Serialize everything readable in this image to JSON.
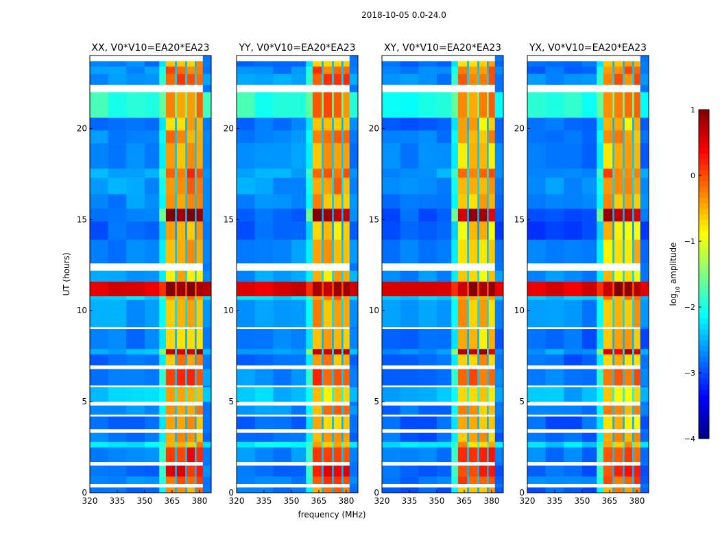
{
  "chart_data": {
    "type": "heatmap",
    "title": "2018-10-05 0.0-24.0",
    "xlabel": "frequency (MHz)",
    "ylabel": "UT (hours)",
    "xlim": [
      320,
      386.4
    ],
    "ylim": [
      0,
      24
    ],
    "xticks": [
      "320",
      "335",
      "350",
      "365",
      "380"
    ],
    "xtick_values": [
      320,
      335,
      350,
      365,
      380
    ],
    "yticks": [
      "0",
      "5",
      "10",
      "15",
      "20"
    ],
    "ytick_values": [
      0,
      5,
      10,
      15,
      20
    ],
    "colorbar": {
      "label_main": "log",
      "label_sub": "10",
      "label_rest": " amplitude",
      "colormap": "jet",
      "range": [
        -4,
        1
      ],
      "ticks": [
        "1",
        "0",
        "−1",
        "−2",
        "−3",
        "−4"
      ],
      "tick_values": [
        1,
        0,
        -1,
        -2,
        -3,
        -4
      ]
    },
    "panels": [
      {
        "title": "XX, V0*V10=EA20*EA23",
        "band_offset": 0.0,
        "bg_offset": 0.0
      },
      {
        "title": "YY, V0*V10=EA20*EA23",
        "band_offset": 0.0,
        "bg_offset": 0.0
      },
      {
        "title": "XY, V0*V10=EA20*EA23",
        "band_offset": -0.1,
        "bg_offset": -0.1
      },
      {
        "title": "YX, V0*V10=EA20*EA23",
        "band_offset": -0.1,
        "bg_offset": -0.1
      }
    ],
    "freq_columns": [
      {
        "f0": 320,
        "f1": 330,
        "kind": "bg"
      },
      {
        "f0": 330,
        "f1": 340,
        "kind": "bg"
      },
      {
        "f0": 340,
        "f1": 350,
        "kind": "bg"
      },
      {
        "f0": 350,
        "f1": 358,
        "kind": "bg"
      },
      {
        "f0": 358,
        "f1": 361.6,
        "kind": "edge"
      },
      {
        "f0": 361.6,
        "f1": 366.6,
        "kind": "band"
      },
      {
        "f0": 366.6,
        "f1": 367.6,
        "kind": "gap"
      },
      {
        "f0": 367.6,
        "f1": 372.2,
        "kind": "band"
      },
      {
        "f0": 372.2,
        "f1": 373.2,
        "kind": "gap"
      },
      {
        "f0": 373.2,
        "f1": 377.4,
        "kind": "band"
      },
      {
        "f0": 377.4,
        "f1": 378.4,
        "kind": "gap"
      },
      {
        "f0": 378.4,
        "f1": 381.8,
        "kind": "band"
      },
      {
        "f0": 381.8,
        "f1": 386.4,
        "kind": "bg"
      }
    ],
    "time_rows": [
      {
        "t0": 0.0,
        "t1": 0.3,
        "bg": -2.8,
        "band": -0.3
      },
      {
        "t0": 0.3,
        "t1": 0.5,
        "flag": true
      },
      {
        "t0": 0.5,
        "t1": 0.9,
        "bg": -2.7,
        "band": 0.0
      },
      {
        "t0": 0.9,
        "t1": 1.5,
        "bg": -2.8,
        "band": 0.3
      },
      {
        "t0": 1.5,
        "t1": 1.7,
        "flag": true
      },
      {
        "t0": 1.7,
        "t1": 2.5,
        "bg": -2.7,
        "band": 0.2
      },
      {
        "t0": 2.5,
        "t1": 2.8,
        "bg": -2.2,
        "band": -0.4
      },
      {
        "t0": 2.8,
        "t1": 3.3,
        "bg": -2.8,
        "band": -0.4
      },
      {
        "t0": 3.3,
        "t1": 3.5,
        "flag": true
      },
      {
        "t0": 3.5,
        "t1": 4.2,
        "bg": -2.8,
        "band": -0.5
      },
      {
        "t0": 4.2,
        "t1": 4.3,
        "flag": true
      },
      {
        "t0": 4.3,
        "t1": 4.8,
        "bg": -2.7,
        "band": -0.3
      },
      {
        "t0": 4.8,
        "t1": 5.0,
        "flag": true
      },
      {
        "t0": 5.0,
        "t1": 5.8,
        "bg": -2.4,
        "band": -0.6
      },
      {
        "t0": 5.8,
        "t1": 5.9,
        "flag": true
      },
      {
        "t0": 5.9,
        "t1": 6.8,
        "bg": -2.7,
        "band": 0.1
      },
      {
        "t0": 6.8,
        "t1": 7.0,
        "flag": true
      },
      {
        "t0": 7.0,
        "t1": 7.6,
        "bg": -2.8,
        "band": -0.4
      },
      {
        "t0": 7.6,
        "t1": 7.9,
        "bg": -2.5,
        "band": 0.8
      },
      {
        "t0": 7.9,
        "t1": 9.0,
        "bg": -2.8,
        "band": -0.5
      },
      {
        "t0": 9.0,
        "t1": 9.1,
        "flag": true
      },
      {
        "t0": 9.1,
        "t1": 10.6,
        "bg": -2.6,
        "band": -0.4
      },
      {
        "t0": 10.6,
        "t1": 10.8,
        "bg": -2.3,
        "band": -0.2
      },
      {
        "t0": 10.8,
        "t1": 11.6,
        "bg": 0.6,
        "band": 0.9
      },
      {
        "t0": 11.6,
        "t1": 12.2,
        "bg": -2.6,
        "band": -0.6
      },
      {
        "t0": 12.2,
        "t1": 12.6,
        "flag": true
      },
      {
        "t0": 12.6,
        "t1": 13.9,
        "bg": -2.7,
        "band": -0.5
      },
      {
        "t0": 13.9,
        "t1": 14.9,
        "bg": -2.9,
        "band": -0.6
      },
      {
        "t0": 14.9,
        "t1": 15.6,
        "bg": -2.8,
        "band": 0.8
      },
      {
        "t0": 15.6,
        "t1": 16.4,
        "bg": -2.7,
        "band": -0.4
      },
      {
        "t0": 16.4,
        "t1": 17.3,
        "bg": -2.6,
        "band": -0.3
      },
      {
        "t0": 17.3,
        "t1": 17.8,
        "bg": -2.5,
        "band": 0.0
      },
      {
        "t0": 17.8,
        "t1": 19.2,
        "bg": -2.7,
        "band": -0.5
      },
      {
        "t0": 19.2,
        "t1": 19.9,
        "bg": -2.7,
        "band": -0.3
      },
      {
        "t0": 19.9,
        "t1": 20.6,
        "bg": -2.8,
        "band": -0.5
      },
      {
        "t0": 20.6,
        "t1": 22.0,
        "bg": -1.9,
        "band": -0.2
      },
      {
        "t0": 22.0,
        "t1": 22.4,
        "flag": true
      },
      {
        "t0": 22.4,
        "t1": 23.0,
        "bg": -2.6,
        "band": 0.0
      },
      {
        "t0": 23.0,
        "t1": 23.4,
        "bg": -2.7,
        "band": -0.1
      },
      {
        "t0": 23.4,
        "t1": 23.7,
        "bg": -2.8,
        "band": -0.5
      },
      {
        "t0": 23.7,
        "t1": 24.0,
        "flag": true
      }
    ]
  }
}
